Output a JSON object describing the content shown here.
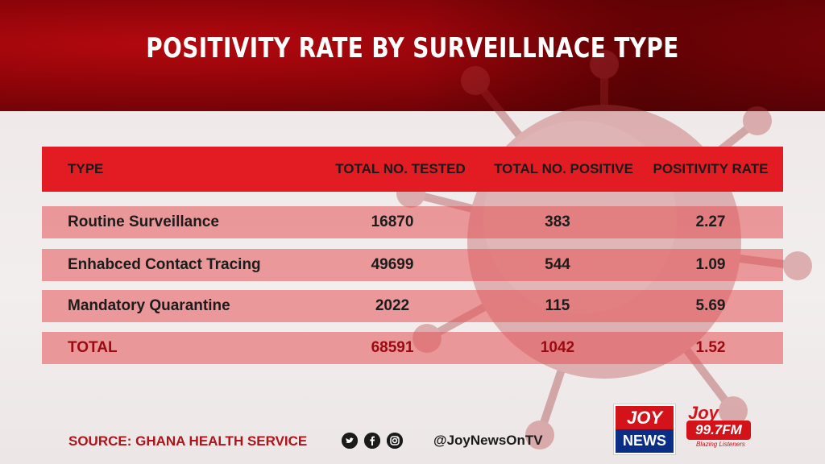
{
  "title": "POSITIVITY RATE BY SURVEILLNACE TYPE",
  "table": {
    "headers": [
      "TYPE",
      "TOTAL NO. TESTED",
      "TOTAL NO. POSITIVE",
      "POSITIVITY RATE"
    ],
    "rows": [
      {
        "type": "Routine Surveillance",
        "tested": "16870",
        "positive": "383",
        "rate": "2.27"
      },
      {
        "type": "Enhabced Contact Tracing",
        "tested": "49699",
        "positive": "544",
        "rate": "1.09"
      },
      {
        "type": "Mandatory Quarantine",
        "tested": "2022",
        "positive": "115",
        "rate": "5.69"
      }
    ],
    "total": {
      "type": "TOTAL",
      "tested": "68591",
      "positive": "1042",
      "rate": "1.52"
    }
  },
  "footer": {
    "source": "SOURCE: GHANA HEALTH SERVICE",
    "social_icons": [
      "twitter-icon",
      "facebook-icon",
      "instagram-icon"
    ],
    "handle": "@JoyNewsOnTV"
  },
  "logos": {
    "joynews_top": "JOY",
    "joynews_bottom": "NEWS",
    "joyfm_name": "Joy",
    "joyfm_freq": "99.7FM",
    "joyfm_tagline": "Blazing Listeners"
  },
  "colors": {
    "accent_red": "#e31b23",
    "dark_red": "#8e0409",
    "total_text": "#9a0a10",
    "navy": "#0a2e86"
  }
}
